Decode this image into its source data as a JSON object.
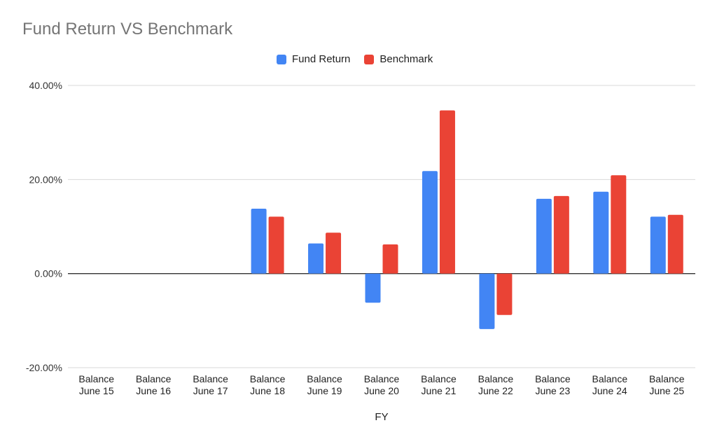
{
  "chart_data": {
    "type": "bar",
    "title": "Fund Return VS Benchmark",
    "xlabel": "FY",
    "ylabel": "",
    "ylim": [
      -20,
      40
    ],
    "yticks": [
      "-20.00%",
      "0.00%",
      "20.00%",
      "40.00%"
    ],
    "ytick_values": [
      -20,
      0,
      20,
      40
    ],
    "grid": true,
    "legend_position": "top",
    "categories": [
      [
        "Balance",
        "June 15"
      ],
      [
        "Balance",
        "June 16"
      ],
      [
        "Balance",
        "June 17"
      ],
      [
        "Balance",
        "June 18"
      ],
      [
        "Balance",
        "June 19"
      ],
      [
        "Balance",
        "June 20"
      ],
      [
        "Balance",
        "June 21"
      ],
      [
        "Balance",
        "June 22"
      ],
      [
        "Balance",
        "June 23"
      ],
      [
        "Balance",
        "June 24"
      ],
      [
        "Balance",
        "June 25"
      ]
    ],
    "series": [
      {
        "name": "Fund Return",
        "color": "#4285F4",
        "values": [
          null,
          null,
          null,
          13.8,
          6.4,
          -6.2,
          21.8,
          -11.8,
          15.9,
          17.4,
          12.1
        ]
      },
      {
        "name": "Benchmark",
        "color": "#EA4335",
        "values": [
          null,
          null,
          null,
          12.1,
          8.7,
          6.2,
          34.7,
          -8.8,
          16.5,
          20.9,
          12.5
        ]
      }
    ]
  }
}
